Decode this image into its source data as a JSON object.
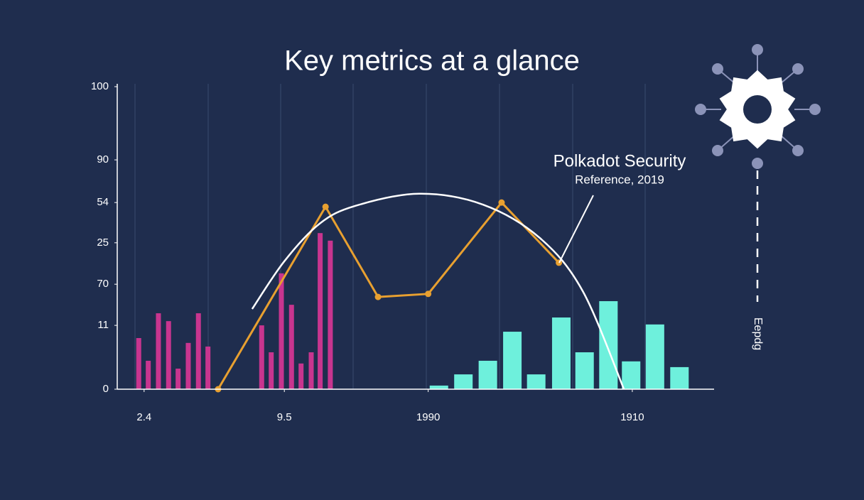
{
  "chart_data": {
    "type": "combo",
    "title": "Key metrics at a glance",
    "xlim": [
      0,
      100
    ],
    "ylim": [
      0,
      100
    ],
    "yticks": [
      100,
      {
        "value": 75.8,
        "label": "90"
      },
      {
        "value": 61.7,
        "label": "54"
      },
      {
        "value": 48.4,
        "label": "25"
      },
      {
        "value": 34.7,
        "label": "70"
      },
      {
        "value": 21.1,
        "label": "11"
      },
      0
    ],
    "xticks": [
      {
        "value": 4.5,
        "label": "2.4"
      },
      {
        "value": 28,
        "label": "9.5"
      },
      {
        "value": 52.1,
        "label": "1990"
      },
      {
        "value": 86.3,
        "label": "1910"
      }
    ],
    "series": [
      {
        "type": "bar",
        "color": "#c8358f",
        "x": [
          3.6,
          5.2,
          6.9,
          8.6,
          10.2,
          11.9,
          13.6,
          15.2,
          24.2,
          25.8,
          27.5,
          29.2,
          30.8,
          32.5,
          34.0,
          35.7
        ],
        "values": [
          16.9,
          9.4,
          25.1,
          22.5,
          6.8,
          15.3,
          25.1,
          14.1,
          21.1,
          12.2,
          38.3,
          27.9,
          8.5,
          12.2,
          51.6,
          49.1
        ]
      },
      {
        "type": "bar",
        "color": "#6ef0dc",
        "x": [
          53.9,
          58.0,
          62.1,
          66.2,
          70.2,
          74.4,
          78.3,
          82.3,
          86.1,
          90.1,
          94.2
        ],
        "values": [
          1.2,
          4.9,
          9.4,
          19.0,
          4.9,
          23.7,
          12.2,
          29.1,
          9.2,
          21.4,
          7.3
        ]
      },
      {
        "type": "line",
        "color": "#e8a030",
        "x": [
          16.9,
          34.9,
          43.7,
          52.1,
          64.4,
          74.0
        ],
        "values": [
          0,
          60.3,
          30.5,
          31.5,
          61.7,
          41.8
        ]
      },
      {
        "type": "curve",
        "color": "#ffffff",
        "x": [
          22.6,
          28,
          33.9,
          39.9,
          50.6,
          61.3,
          70.8,
          78,
          84.9
        ],
        "values": [
          26.5,
          42.3,
          54.7,
          60.6,
          64.6,
          61.0,
          50.0,
          32.4,
          0
        ]
      }
    ],
    "annotation": {
      "title": "Polkadot Security",
      "subtitle": "Reference, 2019"
    },
    "side_label": "Eepdg"
  }
}
